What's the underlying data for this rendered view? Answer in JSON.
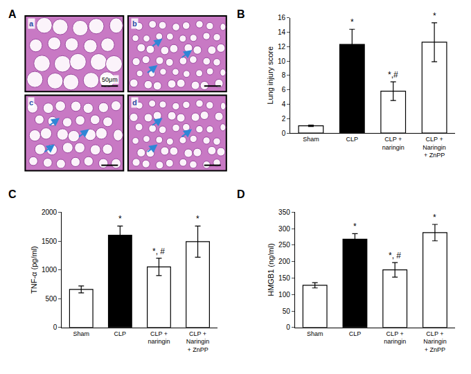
{
  "figure_a": {
    "panel": "A",
    "images": [
      "a",
      "b",
      "c",
      "d"
    ],
    "scale_bar": "50μm"
  },
  "chart_data": [
    {
      "type": "bar",
      "panel": "B",
      "y_label": "Lung injury score",
      "categories": [
        "Sham",
        "CLP",
        "CLP +\nnaringin",
        "CLP +\nNaringin\n+ ZnPP"
      ],
      "values": [
        1.0,
        12.3,
        5.8,
        12.6
      ],
      "errors": [
        0.1,
        2.1,
        1.3,
        2.7
      ],
      "significance": [
        null,
        "*",
        "*,#",
        "*"
      ],
      "colors": [
        "#ffffff",
        "#000000",
        "#ffffff",
        "#ffffff"
      ],
      "ylim": [
        0,
        16
      ],
      "yticks": [
        0,
        2,
        4,
        6,
        8,
        10,
        12,
        14,
        16
      ],
      "grid": false
    },
    {
      "type": "bar",
      "panel": "C",
      "y_label": "TNF-α (pg/ml)",
      "categories": [
        "Sham",
        "CLP",
        "CLP +\nnaringin",
        "CLP +\nNaringin\n+ ZnPP"
      ],
      "values": [
        660,
        1600,
        1050,
        1490
      ],
      "errors": [
        60,
        160,
        150,
        270
      ],
      "significance": [
        null,
        "*",
        "*, #",
        "*"
      ],
      "colors": [
        "#ffffff",
        "#000000",
        "#ffffff",
        "#ffffff"
      ],
      "ylim": [
        0,
        2000
      ],
      "yticks": [
        0,
        500,
        1000,
        1500,
        2000
      ],
      "grid": false
    },
    {
      "type": "bar",
      "panel": "D",
      "y_label": "HMGB1 (ng/ml)",
      "categories": [
        "Sham",
        "CLP",
        "CLP +\nnaringin",
        "CLP +\nNaringin\n+ ZnPP"
      ],
      "values": [
        128,
        268,
        175,
        288
      ],
      "errors": [
        8,
        17,
        22,
        25
      ],
      "significance": [
        null,
        "*",
        "*, #",
        "*"
      ],
      "colors": [
        "#ffffff",
        "#000000",
        "#ffffff",
        "#ffffff"
      ],
      "ylim": [
        0,
        350
      ],
      "yticks": [
        0,
        50,
        100,
        150,
        200,
        250,
        300,
        350
      ],
      "grid": false
    }
  ]
}
